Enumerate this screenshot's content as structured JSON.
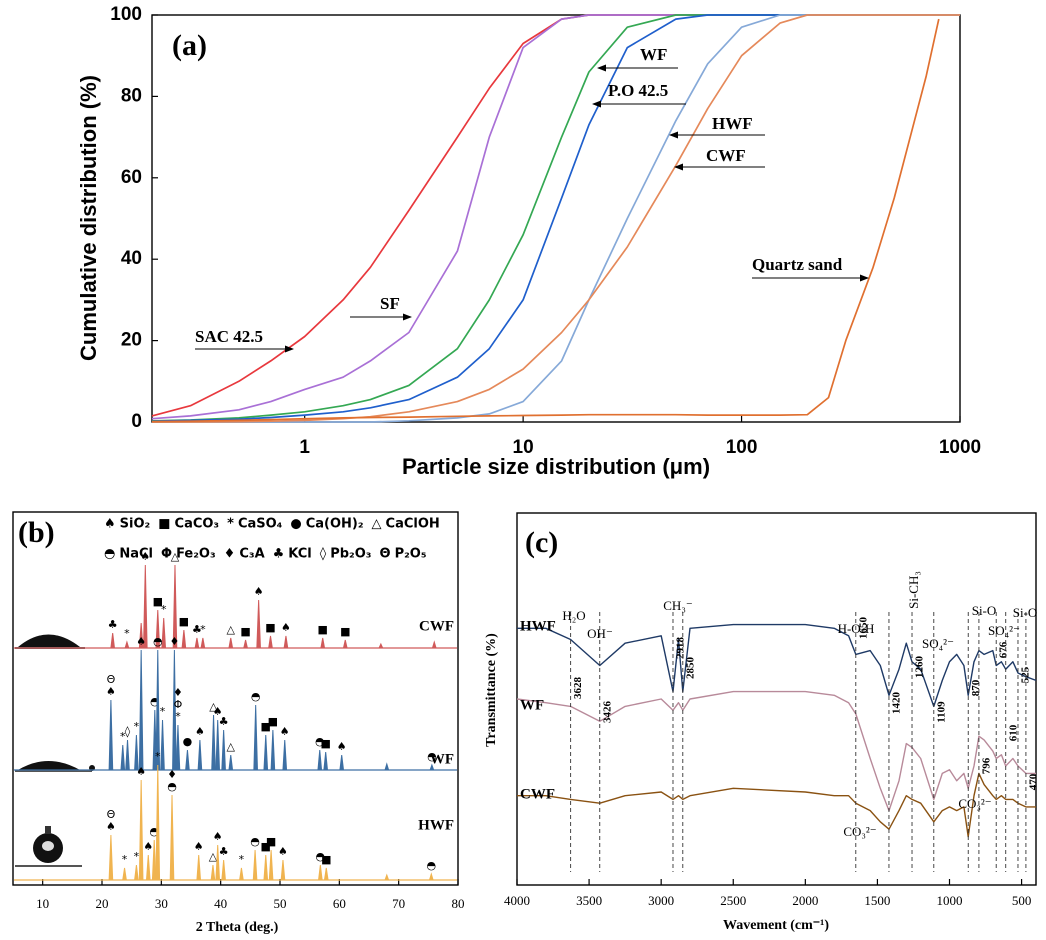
{
  "chart_data": [
    {
      "type": "line",
      "panel_label": "(a)",
      "xlabel": "Particle size distribution (μm)",
      "ylabel": "Cumulative distribution (%)",
      "log_x": true,
      "xlim": [
        0.2,
        1000
      ],
      "xticks": [
        1,
        10,
        100,
        1000
      ],
      "ylim": [
        0,
        100
      ],
      "yticks": [
        0,
        20,
        40,
        60,
        80,
        100
      ],
      "x": [
        0.2,
        0.3,
        0.5,
        0.7,
        1,
        1.5,
        2,
        3,
        5,
        7,
        10,
        15,
        20,
        30,
        50,
        70,
        100,
        150,
        200,
        250,
        300,
        400,
        500,
        700,
        800,
        1000
      ],
      "series": [
        {
          "name": "SAC 42.5",
          "color": "#e8383d",
          "values": [
            1.5,
            4,
            10,
            15,
            21,
            30,
            38,
            52,
            70,
            82,
            93,
            99,
            100,
            100,
            100,
            100,
            100,
            100,
            100,
            100,
            100,
            100,
            100,
            100,
            100,
            100
          ]
        },
        {
          "name": "SF",
          "color": "#a970d6",
          "values": [
            0.8,
            1.5,
            3,
            5,
            8,
            11,
            15,
            22,
            42,
            70,
            92,
            99,
            100,
            100,
            100,
            100,
            100,
            100,
            100,
            100,
            100,
            100,
            100,
            100,
            100,
            100
          ]
        },
        {
          "name": "WF",
          "color": "#34a853",
          "values": [
            0.3,
            0.5,
            1,
            1.7,
            2.5,
            4,
            5.5,
            9,
            18,
            30,
            46,
            70,
            86,
            97,
            100,
            100,
            100,
            100,
            100,
            100,
            100,
            100,
            100,
            100,
            100,
            100
          ]
        },
        {
          "name": "P.O 42.5",
          "color": "#1f5fcc",
          "values": [
            0.2,
            0.4,
            0.7,
            1.1,
            1.7,
            2.5,
            3.5,
            5.5,
            11,
            18,
            30,
            55,
            73,
            92,
            99,
            100,
            100,
            100,
            100,
            100,
            100,
            100,
            100,
            100,
            100,
            100
          ]
        },
        {
          "name": "HWF",
          "color": "#86a9d8",
          "values": [
            0,
            0,
            0,
            0,
            0,
            0,
            0,
            0.3,
            1,
            2,
            5,
            15,
            30,
            50,
            74,
            88,
            97,
            100,
            100,
            100,
            100,
            100,
            100,
            100,
            100,
            100
          ]
        },
        {
          "name": "CWF",
          "color": "#e5895a",
          "values": [
            0,
            0,
            0.1,
            0.2,
            0.4,
            0.8,
            1.3,
            2.5,
            5,
            8,
            13,
            22,
            30,
            43,
            63,
            77,
            90,
            98,
            100,
            100,
            100,
            100,
            100,
            100,
            100,
            100
          ]
        },
        {
          "name": "Quartz sand",
          "color": "#e07030",
          "values": [
            0.1,
            0.2,
            0.4,
            0.6,
            0.8,
            1,
            1.1,
            1.2,
            1.4,
            1.5,
            1.6,
            1.7,
            1.8,
            1.8,
            1.8,
            1.7,
            1.7,
            1.7,
            1.8,
            6,
            20,
            38,
            55,
            85,
            99,
            null
          ]
        }
      ]
    },
    {
      "type": "peaks",
      "panel_label": "(b)",
      "xlabel": "2 Theta (deg.)",
      "xlim": [
        5,
        80
      ],
      "xticks": [
        10,
        20,
        30,
        40,
        50,
        60,
        70,
        80
      ],
      "phase_legend": [
        {
          "symbol": "♠",
          "label": "SiO₂"
        },
        {
          "symbol": "■",
          "label": "CaCO₃"
        },
        {
          "symbol": "*",
          "label": "CaSO₄"
        },
        {
          "symbol": "●",
          "label": "Ca(OH)₂"
        },
        {
          "symbol": "△",
          "label": "CaClOH"
        },
        {
          "symbol": "◓",
          "label": "NaCl"
        },
        {
          "symbol": "Φ",
          "label": "Fe₂O₃"
        },
        {
          "symbol": "♦",
          "label": "C₃A"
        },
        {
          "symbol": "♣",
          "label": "KCl"
        },
        {
          "symbol": "◊",
          "label": "Pb₂O₃"
        },
        {
          "symbol": "Θ",
          "label": "P₂O₅"
        }
      ],
      "series": [
        {
          "name": "CWF",
          "color": "#d05a5a",
          "x": [
            21.8,
            24.2,
            26.6,
            27.3,
            29.4,
            30.4,
            32.3,
            33.8,
            36,
            37,
            41.7,
            44.2,
            46.4,
            48.4,
            51,
            57.2,
            61,
            67,
            76
          ],
          "values": [
            15,
            6,
            25,
            83,
            38,
            30,
            83,
            18,
            10,
            10,
            10,
            8,
            48,
            12,
            12,
            10,
            8,
            4,
            6
          ],
          "phases": [
            [
              "♣"
            ],
            [
              "*"
            ],
            null,
            [
              "♠"
            ],
            [
              "■"
            ],
            [
              "*"
            ],
            [
              "△"
            ],
            [
              "■"
            ],
            [
              "♣"
            ],
            [
              "*"
            ],
            [
              "△"
            ],
            [
              "■"
            ],
            [
              "♠"
            ],
            [
              "■"
            ],
            [
              "♠"
            ],
            [
              "■"
            ],
            [
              "■"
            ],
            null,
            null
          ]
        },
        {
          "name": "WF",
          "color": "#3d6fa3",
          "x": [
            21.5,
            23.5,
            24.3,
            25.8,
            26.6,
            28.9,
            29.4,
            30.2,
            32.2,
            32.8,
            34.4,
            36.5,
            38.8,
            39.5,
            40.5,
            41.7,
            45.9,
            47.6,
            48.8,
            50.8,
            56.7,
            57.7,
            60.4,
            68,
            75.6
          ],
          "values": [
            70,
            25,
            30,
            35,
            120,
            60,
            120,
            50,
            120,
            45,
            20,
            30,
            55,
            50,
            40,
            15,
            65,
            35,
            40,
            30,
            20,
            18,
            15,
            6,
            5
          ],
          "phases": [
            [
              "♠",
              "Θ"
            ],
            [
              "*"
            ],
            [
              "◊"
            ],
            [
              "*"
            ],
            [
              "♠"
            ],
            [
              "◓"
            ],
            [
              "◓"
            ],
            [
              "*"
            ],
            [
              "♦"
            ],
            [
              "*",
              "Φ",
              "♦"
            ],
            [
              "●"
            ],
            [
              "♠"
            ],
            [
              "△"
            ],
            [
              "♠"
            ],
            [
              "♣"
            ],
            [
              "△"
            ],
            [
              "◓"
            ],
            [
              "■"
            ],
            [
              "■"
            ],
            [
              "♠"
            ],
            [
              "◓"
            ],
            [
              "■"
            ],
            [
              "♠"
            ],
            null,
            [
              "◓"
            ]
          ]
        },
        {
          "name": "HWF",
          "color": "#f0b450",
          "x": [
            21.5,
            23.8,
            25.8,
            26.6,
            27.8,
            28.8,
            29.4,
            31.8,
            36.3,
            38.7,
            39.5,
            40.5,
            43.5,
            45.8,
            47.6,
            48.5,
            50.5,
            56.8,
            57.8,
            68,
            75.5
          ],
          "values": [
            45,
            12,
            15,
            100,
            25,
            40,
            115,
            85,
            25,
            15,
            35,
            20,
            12,
            30,
            25,
            30,
            20,
            15,
            12,
            5,
            6
          ],
          "phases": [
            [
              "♠",
              "Θ"
            ],
            [
              "*"
            ],
            [
              "*"
            ],
            [
              "♠"
            ],
            [
              "♠"
            ],
            [
              "◓"
            ],
            [
              "*"
            ],
            [
              "◓",
              "♦"
            ],
            [
              "♠"
            ],
            [
              "△"
            ],
            [
              "♠"
            ],
            [
              "♣"
            ],
            [
              "*"
            ],
            [
              "◓"
            ],
            [
              "■"
            ],
            [
              "■"
            ],
            [
              "♠"
            ],
            [
              "◓"
            ],
            [
              "■"
            ],
            null,
            [
              "◓"
            ]
          ]
        }
      ]
    },
    {
      "type": "line",
      "panel_label": "(c)",
      "xlabel": "Wavement (cm⁻¹)",
      "ylabel": "Transmittance (%)",
      "xlim": [
        4000,
        400
      ],
      "xticks": [
        4000,
        3500,
        3000,
        2500,
        2000,
        1500,
        1000,
        500
      ],
      "ylim": [
        0,
        100
      ],
      "x": [
        4000,
        3800,
        3628,
        3426,
        3250,
        3000,
        2918,
        2880,
        2850,
        2800,
        2500,
        2000,
        1800,
        1700,
        1650,
        1550,
        1480,
        1420,
        1350,
        1300,
        1260,
        1200,
        1109,
        1050,
        1000,
        950,
        900,
        870,
        830,
        796,
        760,
        700,
        676,
        640,
        610,
        560,
        525,
        470,
        400
      ],
      "series": [
        {
          "name": "HWF",
          "color": "#1f3a66",
          "values": [
            69,
            69,
            66,
            59,
            65,
            67,
            52,
            66,
            52,
            69,
            70,
            70,
            69,
            67,
            62,
            63,
            59,
            51,
            58,
            65,
            60,
            58,
            48,
            55,
            60,
            62,
            59,
            51,
            60,
            63,
            62,
            63,
            59,
            60,
            58,
            60,
            57,
            56,
            55
          ]
        },
        {
          "name": "WF",
          "color": "#b88a9a",
          "values": [
            50,
            49,
            48,
            44,
            48,
            50,
            47,
            49,
            47,
            50,
            52,
            52,
            51,
            49,
            46,
            34,
            26,
            20,
            28,
            38,
            37,
            34,
            23,
            30,
            31,
            28,
            30,
            26,
            32,
            40,
            39,
            36,
            34,
            35,
            32,
            34,
            32,
            30,
            30
          ]
        },
        {
          "name": "CWF",
          "color": "#8a5212",
          "values": [
            24,
            24,
            23,
            22,
            24,
            25,
            23,
            24,
            23,
            24,
            26,
            25,
            24,
            24,
            22,
            20,
            17,
            15,
            20,
            24,
            23,
            22,
            17,
            20,
            21,
            20,
            21,
            13,
            24,
            30,
            27,
            24,
            23,
            24,
            23,
            23,
            22,
            21,
            21
          ]
        }
      ],
      "bands": [
        3628,
        3426,
        2918,
        2850,
        1650,
        1420,
        1260,
        1109,
        870,
        796,
        676,
        610,
        525,
        470
      ],
      "annotations": [
        "H₂O",
        "OH⁻",
        "CH₃⁻",
        "H-O-H",
        "Si-CH₃",
        "SO₄²⁻",
        "Si-O",
        "SO₄²⁻",
        "Si-O",
        "CO₃²⁻",
        "CO₃²⁻"
      ]
    }
  ]
}
